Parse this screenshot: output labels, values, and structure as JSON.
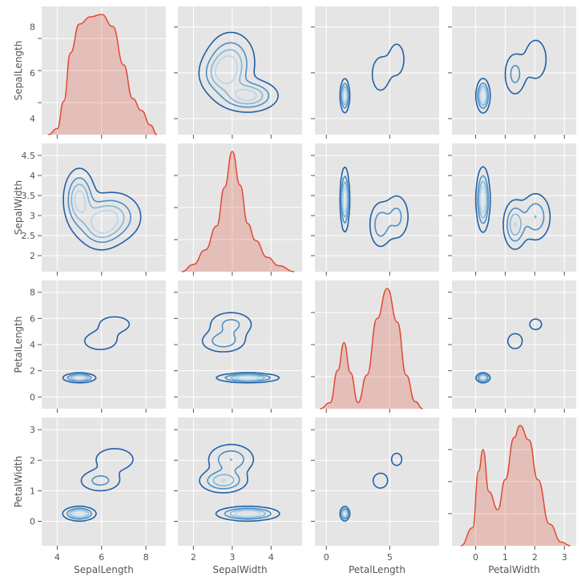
{
  "chart_data": {
    "type": "pairplot",
    "variables": [
      "SepalLength",
      "SepalWidth",
      "PetalLength",
      "PetalWidth"
    ],
    "axes": {
      "SepalLength": {
        "range": [
          3.3,
          8.9
        ],
        "ticks": [
          4,
          6,
          8
        ]
      },
      "SepalWidth": {
        "range": [
          1.6,
          4.8
        ],
        "ticks": [
          2.0,
          2.5,
          3.0,
          3.5,
          4.0,
          4.5
        ],
        "x_ticks": [
          2,
          3,
          4
        ]
      },
      "PetalLength": {
        "range": [
          -0.9,
          8.9
        ],
        "ticks": [
          0,
          2,
          4,
          6,
          8
        ],
        "x_ticks": [
          0,
          5
        ]
      },
      "PetalWidth": {
        "range": [
          -0.8,
          3.4
        ],
        "ticks": [
          0,
          1,
          2,
          3
        ]
      }
    },
    "grid": true,
    "diagonal": {
      "kind": "kde",
      "color": "#e24a33",
      "densities": {
        "SepalLength": [
          [
            3.6,
            0.0
          ],
          [
            4.0,
            0.05
          ],
          [
            4.3,
            0.28
          ],
          [
            4.6,
            0.68
          ],
          [
            5.0,
            0.92
          ],
          [
            5.5,
            0.98
          ],
          [
            6.0,
            1.0
          ],
          [
            6.5,
            0.9
          ],
          [
            7.0,
            0.58
          ],
          [
            7.4,
            0.3
          ],
          [
            7.8,
            0.2
          ],
          [
            8.2,
            0.08
          ],
          [
            8.5,
            0.0
          ]
        ],
        "SepalWidth": [
          [
            1.7,
            0.0
          ],
          [
            2.0,
            0.06
          ],
          [
            2.3,
            0.18
          ],
          [
            2.6,
            0.38
          ],
          [
            2.8,
            0.7
          ],
          [
            3.0,
            1.0
          ],
          [
            3.2,
            0.72
          ],
          [
            3.4,
            0.4
          ],
          [
            3.6,
            0.26
          ],
          [
            3.9,
            0.12
          ],
          [
            4.2,
            0.05
          ],
          [
            4.6,
            0.0
          ]
        ],
        "PetalLength": [
          [
            -0.5,
            0.0
          ],
          [
            0.3,
            0.05
          ],
          [
            0.9,
            0.32
          ],
          [
            1.4,
            0.55
          ],
          [
            1.9,
            0.3
          ],
          [
            2.5,
            0.05
          ],
          [
            3.2,
            0.28
          ],
          [
            4.0,
            0.75
          ],
          [
            4.8,
            1.0
          ],
          [
            5.6,
            0.72
          ],
          [
            6.3,
            0.28
          ],
          [
            7.0,
            0.06
          ],
          [
            7.6,
            0.0
          ]
        ],
        "PetalWidth": [
          [
            -0.5,
            0.0
          ],
          [
            -0.1,
            0.15
          ],
          [
            0.1,
            0.62
          ],
          [
            0.25,
            0.8
          ],
          [
            0.45,
            0.45
          ],
          [
            0.75,
            0.3
          ],
          [
            1.0,
            0.55
          ],
          [
            1.3,
            0.9
          ],
          [
            1.5,
            1.0
          ],
          [
            1.8,
            0.88
          ],
          [
            2.1,
            0.55
          ],
          [
            2.5,
            0.18
          ],
          [
            2.9,
            0.03
          ],
          [
            3.2,
            0.0
          ]
        ]
      }
    },
    "off_diagonal": {
      "kind": "kde-contour",
      "levels": [
        "#1f5fa6",
        "#4a8fc4",
        "#82b5d9",
        "#b7d6ec"
      ],
      "clusters": {
        "setosa": {
          "SepalLength": [
            5.0,
            0.35
          ],
          "SepalWidth": [
            3.4,
            0.38
          ],
          "PetalLength": [
            1.46,
            0.17
          ],
          "PetalWidth": [
            0.25,
            0.11
          ]
        },
        "versicolor": {
          "SepalLength": [
            5.94,
            0.52
          ],
          "SepalWidth": [
            2.77,
            0.31
          ],
          "PetalLength": [
            4.26,
            0.47
          ],
          "PetalWidth": [
            1.33,
            0.2
          ]
        },
        "virginica": {
          "SepalLength": [
            6.59,
            0.64
          ],
          "SepalWidth": [
            2.97,
            0.32
          ],
          "PetalLength": [
            5.55,
            0.55
          ],
          "PetalWidth": [
            2.03,
            0.27
          ]
        }
      }
    }
  }
}
